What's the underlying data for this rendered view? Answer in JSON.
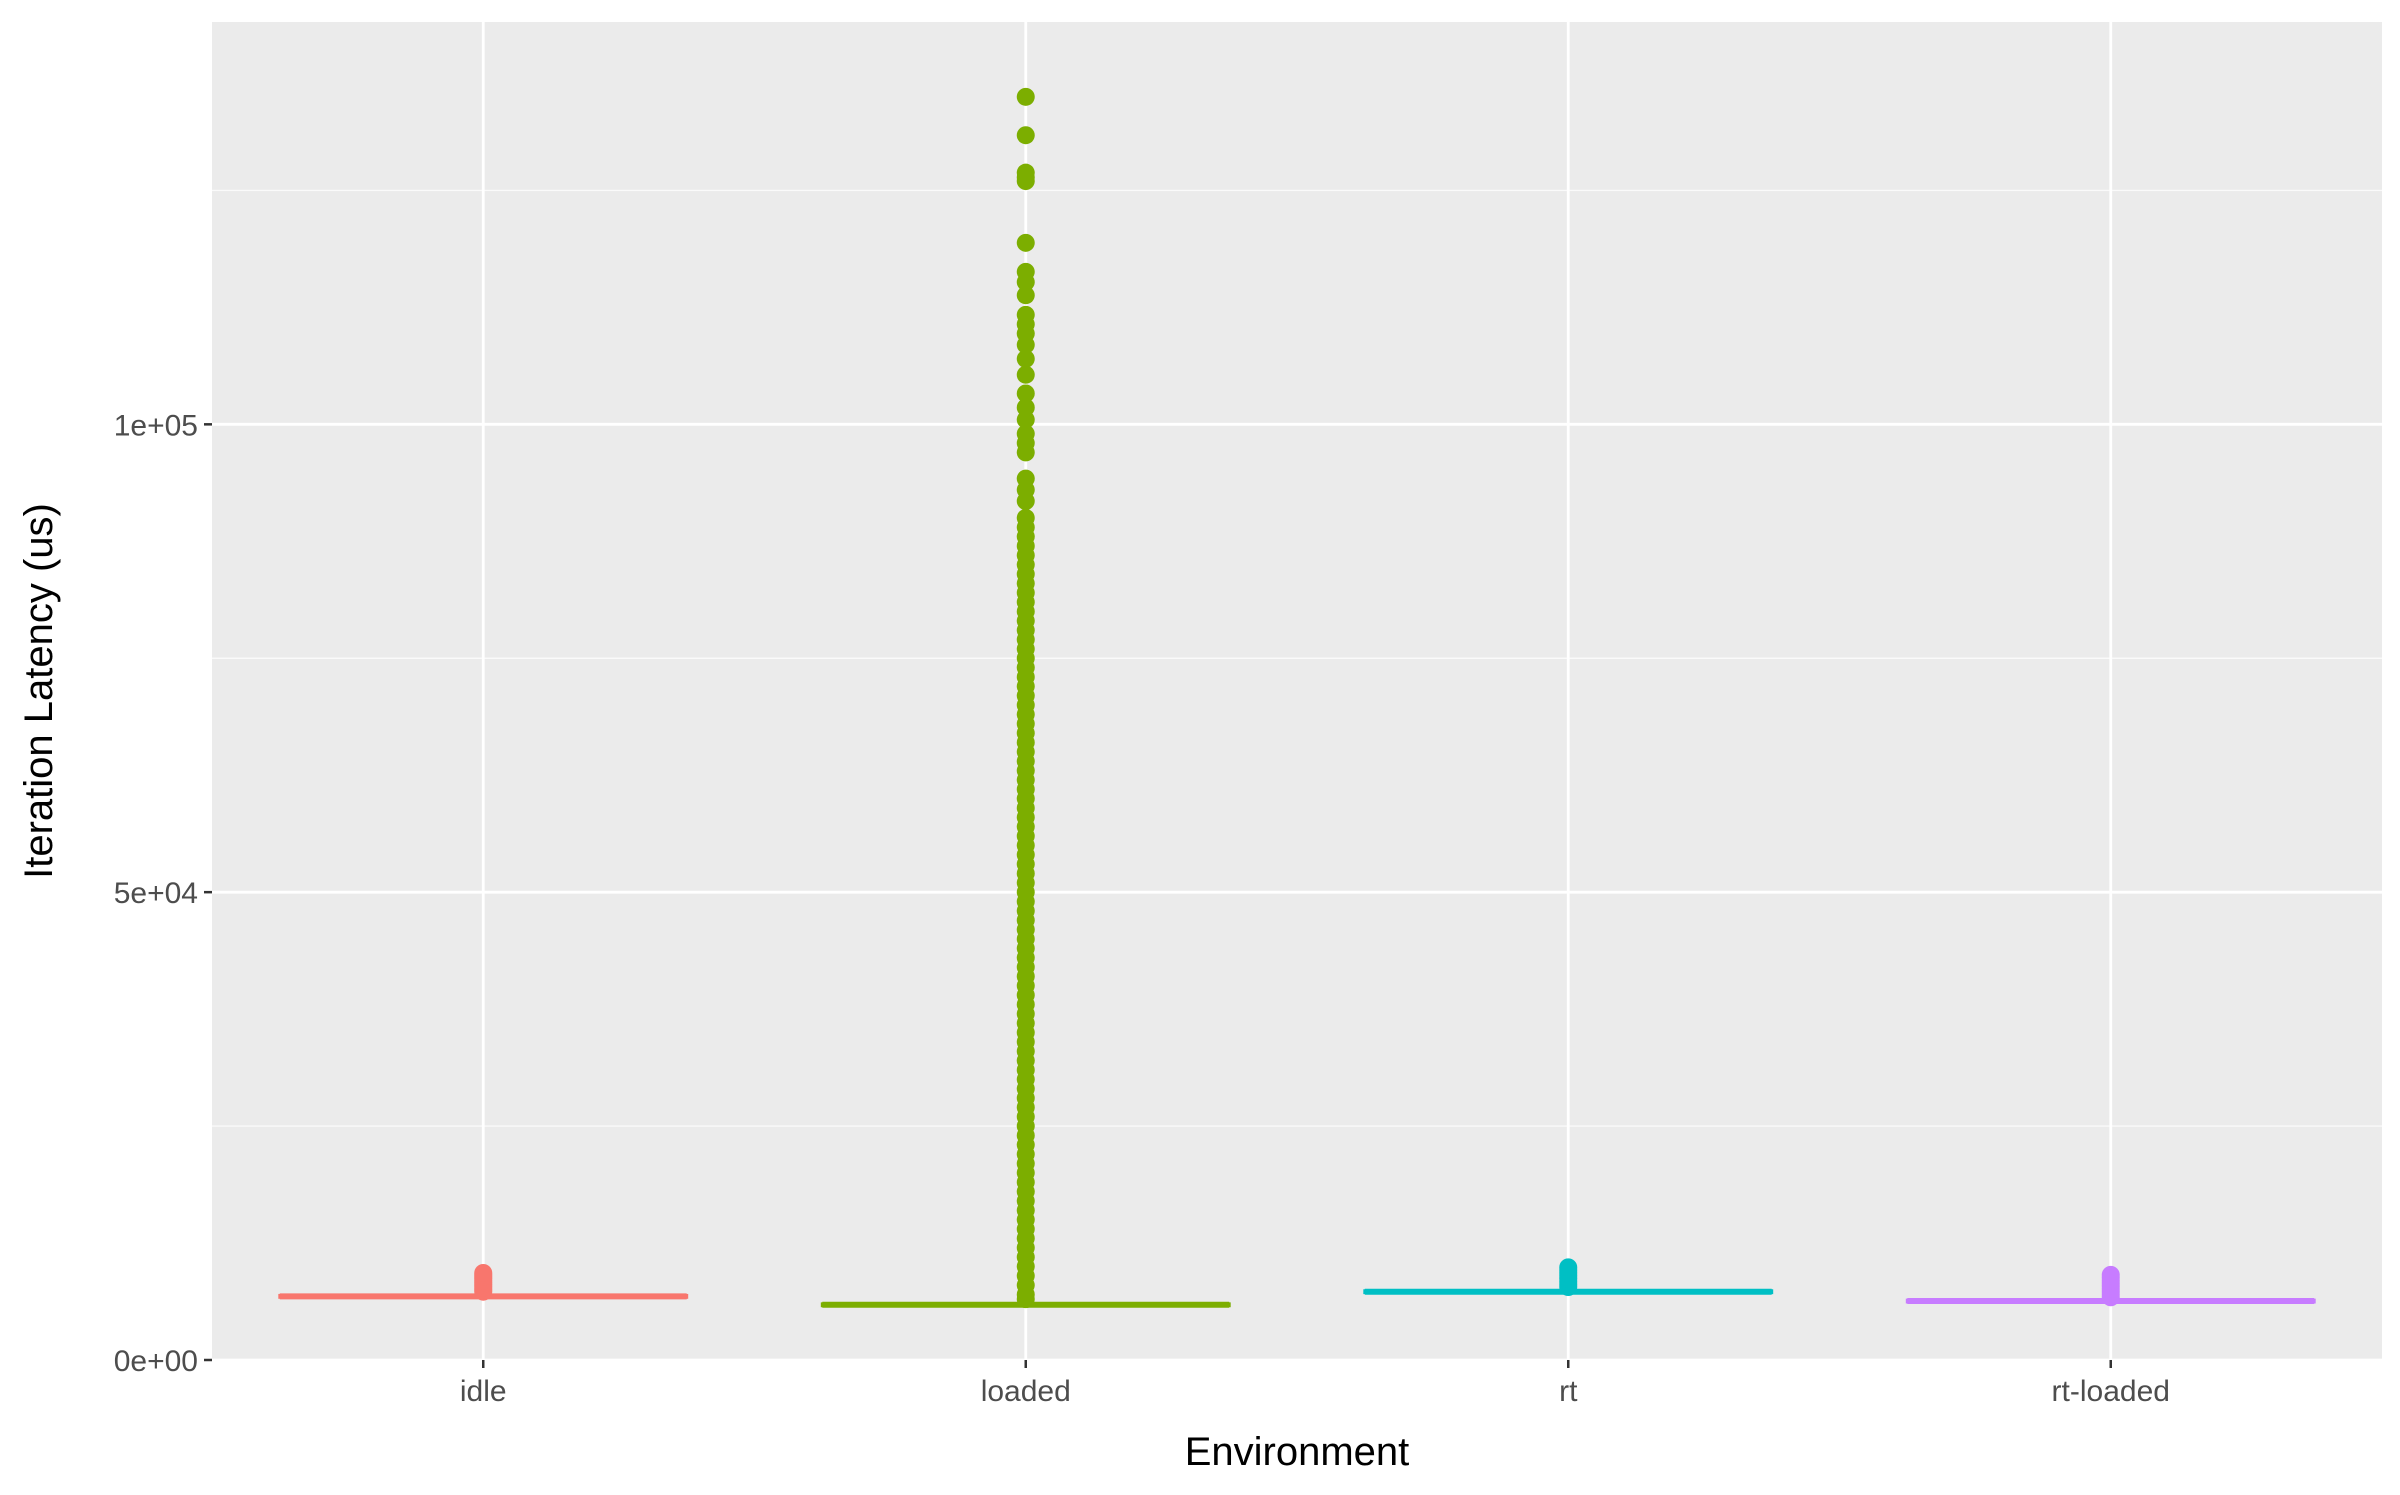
{
  "chart_data": {
    "type": "boxplot",
    "title": "",
    "xlabel": "Environment",
    "ylabel": "Iteration Latency (us)",
    "ylim": [
      0,
      143000
    ],
    "y_ticks": [
      {
        "value": 0,
        "label": "0e+00"
      },
      {
        "value": 50000,
        "label": "5e+04"
      },
      {
        "value": 100000,
        "label": "1e+05"
      }
    ],
    "y_minor_ticks": [
      25000,
      75000,
      125000
    ],
    "grid": true,
    "legend": "none",
    "categories": [
      "idle",
      "loaded",
      "rt",
      "rt-loaded"
    ],
    "series": [
      {
        "category": "idle",
        "color": "#F8766D",
        "box": {
          "min": 6500,
          "q1": 6700,
          "median": 6800,
          "q3": 6900,
          "max": 7100
        },
        "outliers": [
          7300,
          7500,
          7700,
          7900,
          8100,
          8300,
          8500,
          8700,
          8900,
          9100,
          9300
        ]
      },
      {
        "category": "loaded",
        "color": "#7CAE00",
        "box": {
          "min": 5700,
          "q1": 5800,
          "median": 5900,
          "q3": 6000,
          "max": 6100
        },
        "outliers": [
          6500,
          7000,
          8000,
          9000,
          10000,
          11000,
          12000,
          13000,
          14000,
          15000,
          16000,
          17000,
          18000,
          19000,
          20000,
          21000,
          22000,
          23000,
          24000,
          25000,
          26000,
          27000,
          28000,
          29000,
          30000,
          31000,
          32000,
          33000,
          34000,
          35000,
          36000,
          37000,
          38000,
          39000,
          40000,
          41000,
          42000,
          43000,
          44000,
          45000,
          46000,
          47000,
          48000,
          49000,
          50000,
          51000,
          52000,
          53000,
          54000,
          55000,
          56000,
          57000,
          58000,
          59000,
          60000,
          61000,
          62000,
          63000,
          64000,
          65000,
          66000,
          67000,
          68000,
          69000,
          70000,
          71000,
          72000,
          73000,
          74000,
          75000,
          76000,
          77000,
          78000,
          79000,
          80000,
          81000,
          82000,
          83000,
          84000,
          85000,
          86000,
          87000,
          88000,
          89000,
          90000,
          91800,
          93000,
          94200,
          97000,
          98000,
          99000,
          100500,
          101800,
          103300,
          105300,
          107000,
          108500,
          109700,
          110700,
          111700,
          113800,
          115200,
          116300,
          119400,
          126000,
          126400,
          126900,
          130900,
          135000
        ]
      },
      {
        "category": "rt",
        "color": "#00BFC4",
        "box": {
          "min": 7000,
          "q1": 7200,
          "median": 7300,
          "q3": 7400,
          "max": 7600
        },
        "outliers": [
          7800,
          8100,
          8400,
          8700,
          9000,
          9300,
          9600,
          9900
        ]
      },
      {
        "category": "rt-loaded",
        "color": "#C77CFF",
        "box": {
          "min": 6000,
          "q1": 6200,
          "median": 6300,
          "q3": 6400,
          "max": 6500
        },
        "outliers": [
          6700,
          7000,
          7300,
          7600,
          7900,
          8200,
          8500,
          8800,
          9100
        ]
      }
    ]
  },
  "styles": {
    "panel_color": "#EBEBEB",
    "grid_major_color": "#FFFFFF",
    "grid_minor_color": "#F5F5F5",
    "axis_text_color": "#4D4D4D",
    "axis_title_color": "#000000",
    "tick_color": "#333333"
  }
}
